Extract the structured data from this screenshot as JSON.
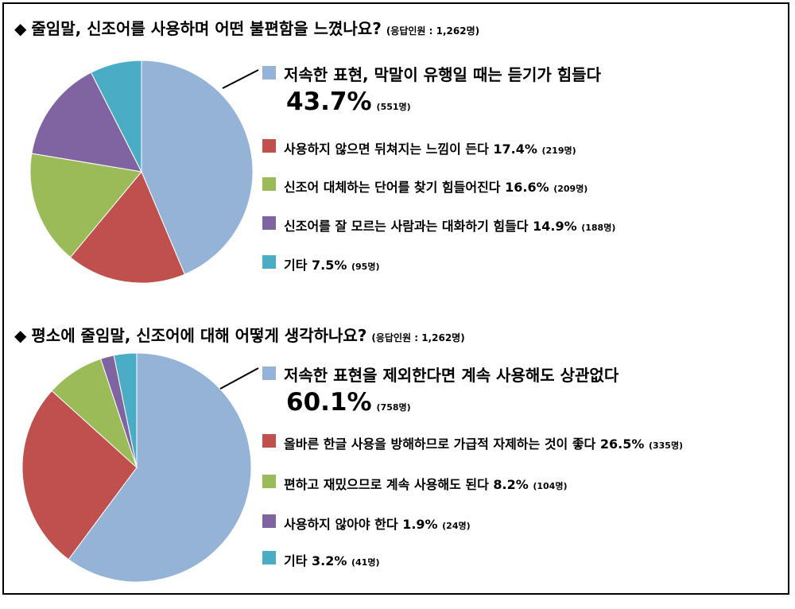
{
  "charts": [
    {
      "heading_marker": "◆",
      "question": "줄임말, 신조어를 사용하며 어떤 불편함을 느꼈나요?",
      "respondents": "(응답인원 : 1,262명)"
    },
    {
      "heading_marker": "◆",
      "question": "평소에 줄임말, 신조어에 대해 어떻게 생각하나요?",
      "respondents": "(응답인원 : 1,262명)"
    }
  ],
  "chart_data": [
    {
      "type": "pie",
      "title": "줄임말, 신조어를 사용하며 어떤 불편함을 느꼈나요?",
      "subtitle": "(응답인원 : 1,262명)",
      "slices": [
        {
          "label": "저속한 표현, 막말이 유행일 때는 듣기가 힘들다",
          "percent_label": "43.7%",
          "value": 43.7,
          "count_label": "(551명)",
          "count": 551,
          "color": "#95B3D7"
        },
        {
          "label": "사용하지 않으면 뒤쳐지는 느낌이 든다",
          "percent_label": "17.4%",
          "value": 17.4,
          "count_label": "(219명)",
          "count": 219,
          "color": "#C0504D"
        },
        {
          "label": "신조어 대체하는 단어를 찾기 힘들어진다",
          "percent_label": "16.6%",
          "value": 16.6,
          "count_label": "(209명)",
          "count": 209,
          "color": "#9BBB59"
        },
        {
          "label": "신조어를 잘 모르는 사람과는 대화하기 힘들다",
          "percent_label": "14.9%",
          "value": 14.9,
          "count_label": "(188명)",
          "count": 188,
          "color": "#8064A2"
        },
        {
          "label": "기타",
          "percent_label": "7.5%",
          "value": 7.5,
          "count_label": "(95명)",
          "count": 95,
          "color": "#4BACC6"
        }
      ],
      "legend_position": "right"
    },
    {
      "type": "pie",
      "title": "평소에 줄임말, 신조어에 대해 어떻게 생각하나요?",
      "subtitle": "(응답인원 : 1,262명)",
      "slices": [
        {
          "label": "저속한 표현을 제외한다면 계속 사용해도 상관없다",
          "percent_label": "60.1%",
          "value": 60.1,
          "count_label": "(758명)",
          "count": 758,
          "color": "#95B3D7"
        },
        {
          "label": "올바른 한글 사용을 방해하므로 가급적 자제하는 것이 좋다",
          "percent_label": "26.5%",
          "value": 26.5,
          "count_label": "(335명)",
          "count": 335,
          "color": "#C0504D"
        },
        {
          "label": "편하고 재밌으므로 계속 사용해도 된다",
          "percent_label": "8.2%",
          "value": 8.2,
          "count_label": "(104명)",
          "count": 104,
          "color": "#9BBB59"
        },
        {
          "label": "사용하지 않아야 한다",
          "percent_label": "1.9%",
          "value": 1.9,
          "count_label": "(24명)",
          "count": 24,
          "color": "#8064A2"
        },
        {
          "label": "기타",
          "percent_label": "3.2%",
          "value": 3.2,
          "count_label": "(41명)",
          "count": 41,
          "color": "#4BACC6"
        }
      ],
      "legend_position": "right"
    }
  ]
}
